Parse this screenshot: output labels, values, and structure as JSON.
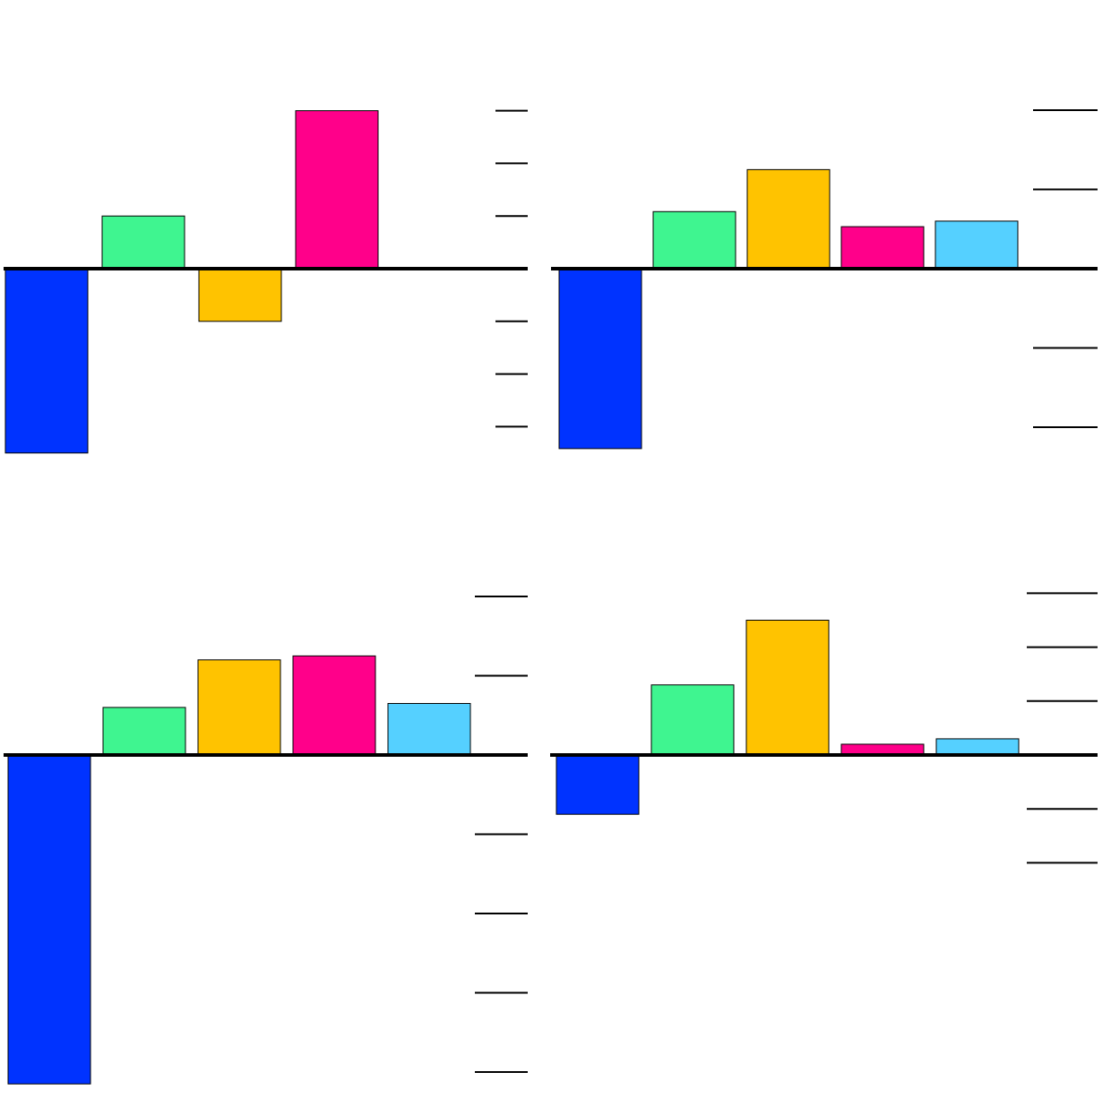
{
  "chart_data": [
    {
      "type": "bar",
      "grid": false,
      "legend": "none",
      "ylim": [
        -3.6,
        3.0
      ],
      "ticks": [
        3,
        2,
        1,
        -1,
        -2,
        -3
      ],
      "series": [
        {
          "values": [
            -3.5,
            1,
            -1,
            3
          ]
        }
      ],
      "colors": [
        "#0033ff",
        "#3ff590",
        "#ffc300",
        "#ff008a"
      ]
    },
    {
      "type": "bar",
      "grid": false,
      "legend": "none",
      "ylim": [
        -2.3,
        2.0
      ],
      "ticks": [
        2,
        1,
        -1,
        -2
      ],
      "series": [
        {
          "values": [
            -2.27,
            0.72,
            1.25,
            0.53,
            0.6
          ]
        }
      ],
      "colors": [
        "#0033ff",
        "#3ff590",
        "#ffc300",
        "#ff008a",
        "#55d0ff"
      ]
    },
    {
      "type": "bar",
      "grid": false,
      "legend": "none",
      "ylim": [
        -4.2,
        2.0
      ],
      "ticks": [
        2,
        1,
        -1,
        -2,
        -3,
        -4
      ],
      "series": [
        {
          "values": [
            -4.15,
            0.6,
            1.2,
            1.25,
            0.65
          ]
        }
      ],
      "colors": [
        "#0033ff",
        "#3ff590",
        "#ffc300",
        "#ff008a",
        "#55d0ff"
      ]
    },
    {
      "type": "bar",
      "grid": false,
      "legend": "none",
      "ylim": [
        -2.0,
        3.0
      ],
      "ticks": [
        3,
        2,
        1,
        -1,
        -2
      ],
      "series": [
        {
          "values": [
            -1.1,
            1.3,
            2.5,
            0.2,
            0.3
          ]
        }
      ],
      "colors": [
        "#0033ff",
        "#3ff590",
        "#ffc300",
        "#ff008a",
        "#55d0ff"
      ]
    }
  ]
}
